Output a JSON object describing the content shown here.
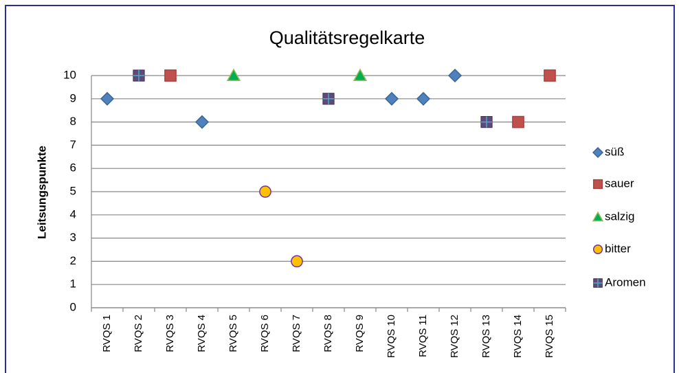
{
  "chart_data": {
    "type": "scatter",
    "title": "Qualitätsregelkarte",
    "y_label": "Leitsungspunkte",
    "categories": [
      "RVQS 1",
      "RVQS 2",
      "RVQS 3",
      "RVQS 4",
      "RVQS 5",
      "RVQS 6",
      "RVQS 7",
      "RVQS 8",
      "RVQS 9",
      "RVQS 10",
      "RVQS 11",
      "RVQS 12",
      "RVQS 13",
      "RVQS 14",
      "RVQS 15"
    ],
    "series": [
      {
        "name": "süß",
        "marker": "diamond",
        "color": "#4f81bd",
        "edge_color": "#3a6595",
        "values": [
          9,
          null,
          null,
          8,
          null,
          null,
          null,
          null,
          null,
          9,
          9,
          10,
          null,
          null,
          null
        ]
      },
      {
        "name": "sauer",
        "marker": "square",
        "color": "#c0504d",
        "edge_color": "#a8423f",
        "values": [
          null,
          null,
          10,
          null,
          null,
          null,
          null,
          null,
          null,
          null,
          null,
          null,
          null,
          8,
          10
        ]
      },
      {
        "name": "salzig",
        "marker": "triangle",
        "color": "#00b050",
        "edge_color": "#9bbb59",
        "values": [
          null,
          null,
          null,
          null,
          10,
          null,
          null,
          null,
          10,
          null,
          null,
          null,
          null,
          null,
          null
        ]
      },
      {
        "name": "bitter",
        "marker": "circle",
        "color": "#ffc000",
        "edge_color": "#7030a0",
        "values": [
          null,
          null,
          null,
          null,
          null,
          5,
          2,
          null,
          null,
          null,
          null,
          null,
          null,
          null,
          null
        ]
      },
      {
        "name": "Aromen",
        "marker": "plus-square",
        "color": "#604a7b",
        "edge_color": "#4bacc6",
        "values": [
          null,
          10,
          null,
          null,
          null,
          null,
          null,
          9,
          null,
          null,
          null,
          null,
          8,
          null,
          null
        ]
      }
    ],
    "ylim": [
      0,
      10
    ],
    "yticks": [
      0,
      1,
      2,
      3,
      4,
      5,
      6,
      7,
      8,
      9,
      10
    ],
    "grid": true,
    "legend": "right"
  }
}
